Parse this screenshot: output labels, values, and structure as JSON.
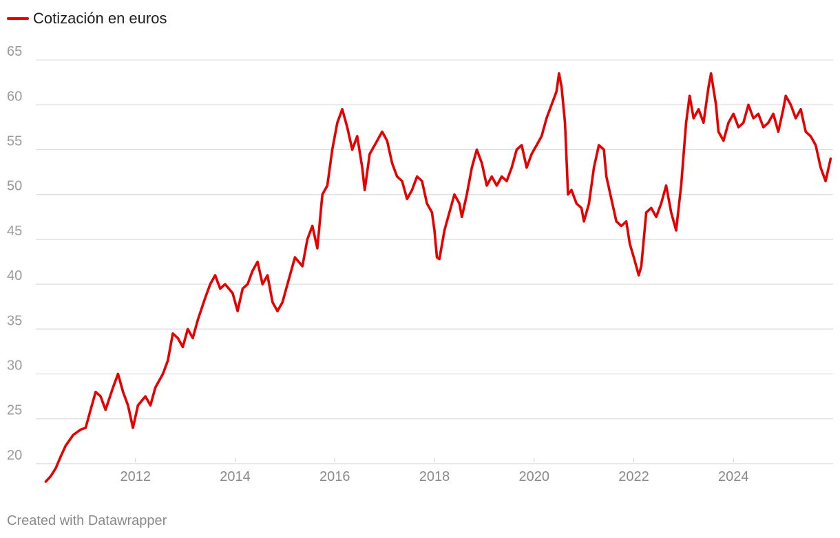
{
  "credit": "Created with Datawrapper",
  "chart_data": {
    "type": "line",
    "title": "",
    "xlabel": "",
    "ylabel": "",
    "legend": {
      "position": "top-left",
      "entries": [
        "Cotización en euros"
      ]
    },
    "grid": {
      "horizontal": true,
      "vertical": false
    },
    "xlim": [
      2010.0,
      2026.0
    ],
    "ylim": [
      18,
      68
    ],
    "y_ticks": [
      20,
      25,
      30,
      35,
      40,
      45,
      50,
      55,
      60,
      65
    ],
    "x_ticks": [
      2012,
      2014,
      2016,
      2018,
      2020,
      2022,
      2024
    ],
    "series": [
      {
        "name": "Cotización en euros",
        "color": "#e60000",
        "points": [
          [
            2010.2,
            18.0
          ],
          [
            2010.3,
            18.6
          ],
          [
            2010.4,
            19.5
          ],
          [
            2010.5,
            20.8
          ],
          [
            2010.6,
            22.0
          ],
          [
            2010.75,
            23.2
          ],
          [
            2010.9,
            23.8
          ],
          [
            2011.0,
            24.0
          ],
          [
            2011.1,
            26.0
          ],
          [
            2011.2,
            28.0
          ],
          [
            2011.3,
            27.5
          ],
          [
            2011.4,
            26.0
          ],
          [
            2011.55,
            28.5
          ],
          [
            2011.65,
            30.0
          ],
          [
            2011.75,
            28.0
          ],
          [
            2011.85,
            26.5
          ],
          [
            2011.95,
            24.0
          ],
          [
            2012.05,
            26.5
          ],
          [
            2012.2,
            27.5
          ],
          [
            2012.3,
            26.5
          ],
          [
            2012.4,
            28.5
          ],
          [
            2012.55,
            30.0
          ],
          [
            2012.65,
            31.5
          ],
          [
            2012.75,
            34.5
          ],
          [
            2012.85,
            34.0
          ],
          [
            2012.95,
            33.0
          ],
          [
            2013.05,
            35.0
          ],
          [
            2013.15,
            34.0
          ],
          [
            2013.25,
            36.0
          ],
          [
            2013.4,
            38.5
          ],
          [
            2013.5,
            40.0
          ],
          [
            2013.6,
            41.0
          ],
          [
            2013.7,
            39.5
          ],
          [
            2013.8,
            40.0
          ],
          [
            2013.95,
            39.0
          ],
          [
            2014.05,
            37.0
          ],
          [
            2014.15,
            39.5
          ],
          [
            2014.25,
            40.0
          ],
          [
            2014.35,
            41.5
          ],
          [
            2014.45,
            42.5
          ],
          [
            2014.55,
            40.0
          ],
          [
            2014.65,
            41.0
          ],
          [
            2014.75,
            38.0
          ],
          [
            2014.85,
            37.0
          ],
          [
            2014.95,
            38.0
          ],
          [
            2015.05,
            40.0
          ],
          [
            2015.2,
            43.0
          ],
          [
            2015.35,
            42.0
          ],
          [
            2015.45,
            45.0
          ],
          [
            2015.55,
            46.5
          ],
          [
            2015.65,
            44.0
          ],
          [
            2015.75,
            50.0
          ],
          [
            2015.85,
            51.0
          ],
          [
            2015.95,
            55.0
          ],
          [
            2016.05,
            58.0
          ],
          [
            2016.15,
            59.5
          ],
          [
            2016.25,
            57.5
          ],
          [
            2016.35,
            55.0
          ],
          [
            2016.45,
            56.5
          ],
          [
            2016.55,
            53.0
          ],
          [
            2016.6,
            50.5
          ],
          [
            2016.7,
            54.5
          ],
          [
            2016.85,
            56.0
          ],
          [
            2016.95,
            57.0
          ],
          [
            2017.05,
            56.0
          ],
          [
            2017.15,
            53.5
          ],
          [
            2017.25,
            52.0
          ],
          [
            2017.35,
            51.5
          ],
          [
            2017.45,
            49.5
          ],
          [
            2017.55,
            50.5
          ],
          [
            2017.65,
            52.0
          ],
          [
            2017.75,
            51.5
          ],
          [
            2017.85,
            49.0
          ],
          [
            2017.95,
            48.0
          ],
          [
            2018.0,
            46.0
          ],
          [
            2018.05,
            43.0
          ],
          [
            2018.1,
            42.8
          ],
          [
            2018.2,
            46.0
          ],
          [
            2018.3,
            48.0
          ],
          [
            2018.4,
            50.0
          ],
          [
            2018.5,
            49.0
          ],
          [
            2018.55,
            47.5
          ],
          [
            2018.65,
            50.0
          ],
          [
            2018.75,
            53.0
          ],
          [
            2018.85,
            55.0
          ],
          [
            2018.95,
            53.5
          ],
          [
            2019.05,
            51.0
          ],
          [
            2019.15,
            52.0
          ],
          [
            2019.25,
            51.0
          ],
          [
            2019.35,
            52.0
          ],
          [
            2019.45,
            51.5
          ],
          [
            2019.55,
            53.0
          ],
          [
            2019.65,
            55.0
          ],
          [
            2019.75,
            55.5
          ],
          [
            2019.85,
            53.0
          ],
          [
            2019.95,
            54.5
          ],
          [
            2020.05,
            55.5
          ],
          [
            2020.15,
            56.5
          ],
          [
            2020.25,
            58.5
          ],
          [
            2020.35,
            60.0
          ],
          [
            2020.45,
            61.5
          ],
          [
            2020.5,
            63.5
          ],
          [
            2020.55,
            62.0
          ],
          [
            2020.62,
            58.0
          ],
          [
            2020.68,
            50.0
          ],
          [
            2020.75,
            50.5
          ],
          [
            2020.85,
            49.0
          ],
          [
            2020.95,
            48.5
          ],
          [
            2021.0,
            47.0
          ],
          [
            2021.1,
            49.0
          ],
          [
            2021.2,
            53.0
          ],
          [
            2021.3,
            55.5
          ],
          [
            2021.4,
            55.0
          ],
          [
            2021.45,
            52.0
          ],
          [
            2021.55,
            49.5
          ],
          [
            2021.65,
            47.0
          ],
          [
            2021.75,
            46.5
          ],
          [
            2021.85,
            47.0
          ],
          [
            2021.92,
            44.5
          ],
          [
            2022.0,
            43.0
          ],
          [
            2022.1,
            41.0
          ],
          [
            2022.15,
            42.0
          ],
          [
            2022.25,
            48.0
          ],
          [
            2022.35,
            48.5
          ],
          [
            2022.45,
            47.5
          ],
          [
            2022.55,
            49.0
          ],
          [
            2022.65,
            51.0
          ],
          [
            2022.75,
            48.0
          ],
          [
            2022.85,
            46.0
          ],
          [
            2022.95,
            51.0
          ],
          [
            2023.05,
            58.0
          ],
          [
            2023.12,
            61.0
          ],
          [
            2023.2,
            58.5
          ],
          [
            2023.3,
            59.5
          ],
          [
            2023.4,
            58.0
          ],
          [
            2023.5,
            62.0
          ],
          [
            2023.55,
            63.5
          ],
          [
            2023.65,
            60.0
          ],
          [
            2023.7,
            57.0
          ],
          [
            2023.8,
            56.0
          ],
          [
            2023.9,
            58.0
          ],
          [
            2024.0,
            59.0
          ],
          [
            2024.1,
            57.5
          ],
          [
            2024.2,
            58.0
          ],
          [
            2024.3,
            60.0
          ],
          [
            2024.4,
            58.5
          ],
          [
            2024.5,
            59.0
          ],
          [
            2024.6,
            57.5
          ],
          [
            2024.7,
            58.0
          ],
          [
            2024.8,
            59.0
          ],
          [
            2024.9,
            57.0
          ],
          [
            2025.0,
            59.5
          ],
          [
            2025.05,
            61.0
          ],
          [
            2025.15,
            60.0
          ],
          [
            2025.25,
            58.5
          ],
          [
            2025.35,
            59.5
          ],
          [
            2025.45,
            57.0
          ],
          [
            2025.55,
            56.5
          ],
          [
            2025.65,
            55.5
          ],
          [
            2025.75,
            53.0
          ],
          [
            2025.85,
            51.5
          ],
          [
            2025.95,
            54.0
          ]
        ]
      }
    ]
  }
}
